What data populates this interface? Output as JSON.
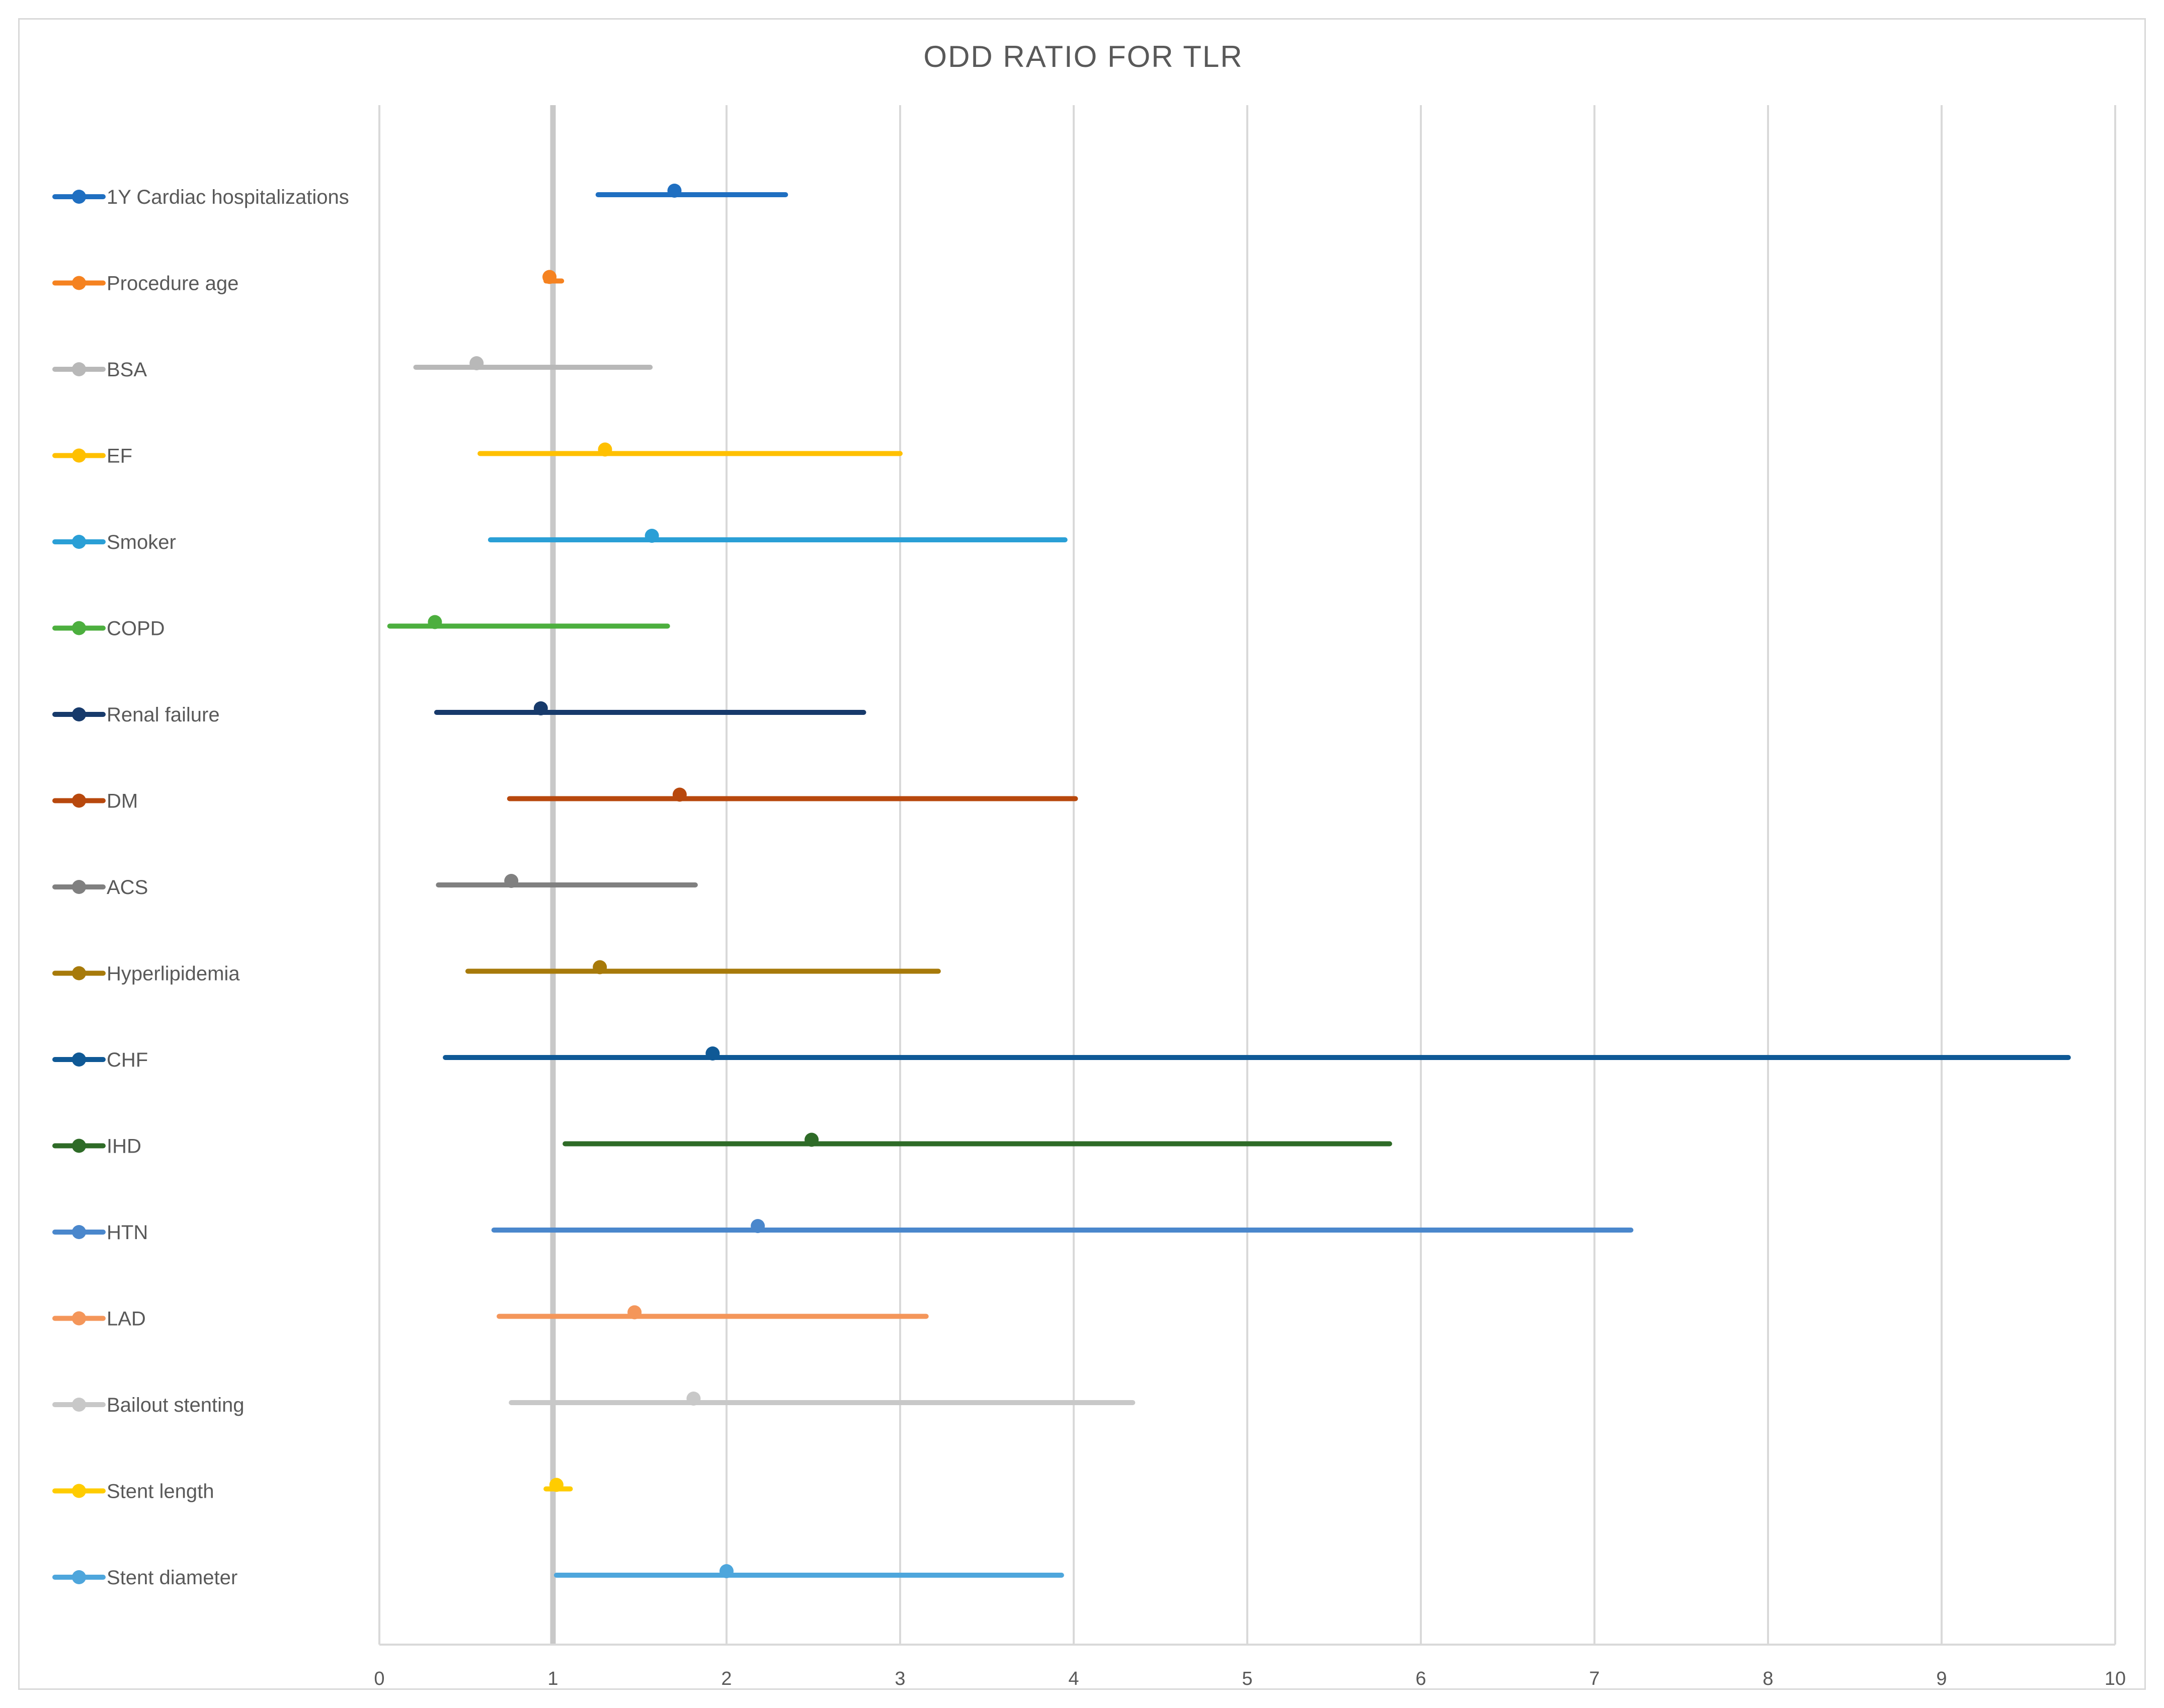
{
  "chart_data": {
    "type": "forest",
    "title": "ODD RATIO FOR TLR",
    "xlim": [
      0,
      10
    ],
    "x_ticks": [
      "0",
      "1",
      "2",
      "3",
      "4",
      "5",
      "6",
      "7",
      "8",
      "9",
      "10"
    ],
    "reference_line": 1,
    "grid": "vertical",
    "legend_position": "left",
    "series": [
      {
        "name": "1Y Cardiac hospitalizations",
        "or": 1.7,
        "ci_low": 1.26,
        "ci_high": 2.34,
        "color": "#1f6fc1"
      },
      {
        "name": "Procedure age",
        "or": 0.98,
        "ci_low": 0.96,
        "ci_high": 1.05,
        "color": "#f58220"
      },
      {
        "name": "BSA",
        "or": 0.56,
        "ci_low": 0.21,
        "ci_high": 1.56,
        "color": "#b8b8b8"
      },
      {
        "name": "EF",
        "or": 1.3,
        "ci_low": 0.58,
        "ci_high": 3.0,
        "color": "#ffc000"
      },
      {
        "name": "Smoker",
        "or": 1.57,
        "ci_low": 0.64,
        "ci_high": 3.95,
        "color": "#2a9fd6"
      },
      {
        "name": "COPD",
        "or": 0.32,
        "ci_low": 0.06,
        "ci_high": 1.66,
        "color": "#4caf3e"
      },
      {
        "name": "Renal failure",
        "or": 0.93,
        "ci_low": 0.33,
        "ci_high": 2.79,
        "color": "#173a6b"
      },
      {
        "name": "DM",
        "or": 1.73,
        "ci_low": 0.75,
        "ci_high": 4.01,
        "color": "#b8480d"
      },
      {
        "name": "ACS",
        "or": 0.76,
        "ci_low": 0.34,
        "ci_high": 1.82,
        "color": "#808080"
      },
      {
        "name": "Hyperlipidemia",
        "or": 1.27,
        "ci_low": 0.51,
        "ci_high": 3.22,
        "color": "#a77a0a"
      },
      {
        "name": "CHF",
        "or": 1.92,
        "ci_low": 0.38,
        "ci_high": 9.73,
        "color": "#0f5996"
      },
      {
        "name": "IHD",
        "or": 2.49,
        "ci_low": 1.07,
        "ci_high": 5.82,
        "color": "#2e6b27"
      },
      {
        "name": "HTN",
        "or": 2.18,
        "ci_low": 0.66,
        "ci_high": 7.21,
        "color": "#4a87cc"
      },
      {
        "name": "LAD",
        "or": 1.47,
        "ci_low": 0.69,
        "ci_high": 3.15,
        "color": "#f4965a"
      },
      {
        "name": "Bailout stenting",
        "or": 1.81,
        "ci_low": 0.76,
        "ci_high": 4.34,
        "color": "#c8c8c8"
      },
      {
        "name": "Stent length",
        "or": 1.02,
        "ci_low": 0.96,
        "ci_high": 1.1,
        "color": "#ffcc00"
      },
      {
        "name": "Stent diameter",
        "or": 2.0,
        "ci_low": 1.02,
        "ci_high": 3.93,
        "color": "#4ea6dc"
      }
    ]
  }
}
